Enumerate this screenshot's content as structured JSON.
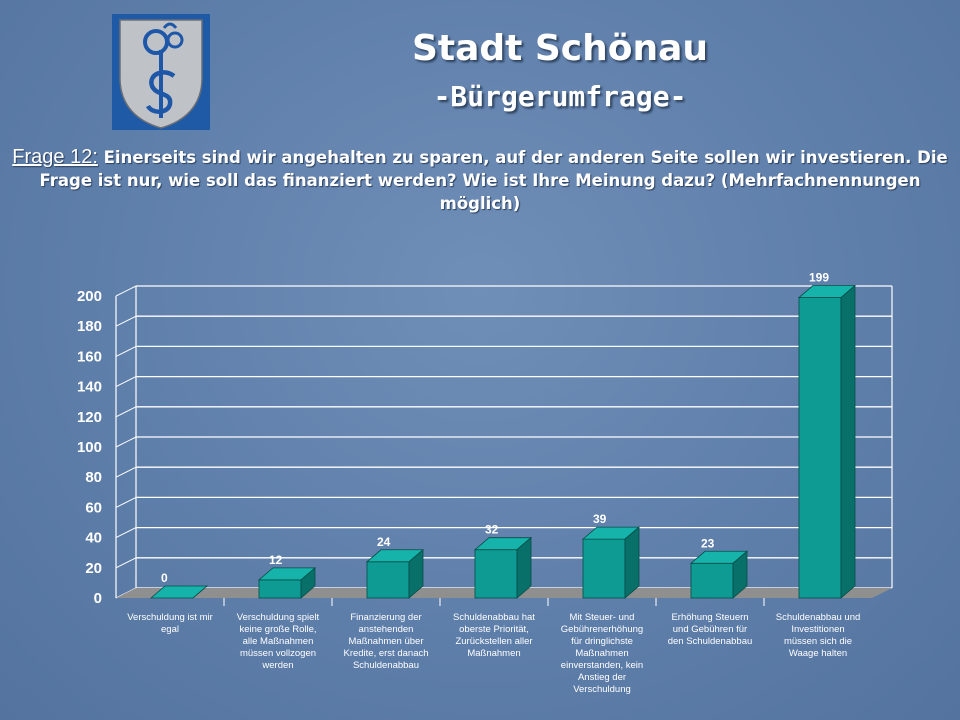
{
  "header": {
    "title": "Stadt Schönau",
    "subtitle": "-Bürgerumfrage-"
  },
  "question": {
    "label": "Frage 12:",
    "text": "Einerseits sind wir angehalten zu sparen, auf der anderen Seite sollen wir investieren. Die Frage ist nur, wie soll das finanziert werden? Wie ist Ihre Meinung dazu? (Mehrfachnennungen möglich)"
  },
  "colors": {
    "bar_front": "#0e9b93",
    "bar_top": "#15b3aa",
    "bar_side": "#087068",
    "floor": "#8f8f8f",
    "gridline": "#ffffff"
  },
  "chart_data": {
    "type": "bar",
    "categories": [
      [
        "Verschuldung ist mir",
        "egal"
      ],
      [
        "Verschuldung spielt",
        "keine große Rolle,",
        "alle Maßnahmen",
        "müssen vollzogen",
        "werden"
      ],
      [
        "Finanzierung der",
        "anstehenden",
        "Maßnahmen über",
        "Kredite, erst danach",
        "Schuldenabbau"
      ],
      [
        "Schuldenabbau hat",
        "oberste Priorität,",
        "Zurückstellen aller",
        "Maßnahmen"
      ],
      [
        "Mit Steuer- und",
        "Gebührenerhöhung",
        "für dringlichste",
        "Maßnahmen",
        "einverstanden, kein",
        "Anstieg der",
        "Verschuldung"
      ],
      [
        "Erhöhung Steuern",
        "und Gebühren für",
        "den Schuldenabbau"
      ],
      [
        "Schuldenabbau und",
        "Investitionen",
        "müssen sich die",
        "Waage halten"
      ]
    ],
    "values": [
      0,
      12,
      24,
      32,
      39,
      23,
      199
    ],
    "ylim": [
      0,
      200
    ],
    "yticks": [
      0,
      20,
      40,
      60,
      80,
      100,
      120,
      140,
      160,
      180,
      200
    ],
    "grid": true
  }
}
